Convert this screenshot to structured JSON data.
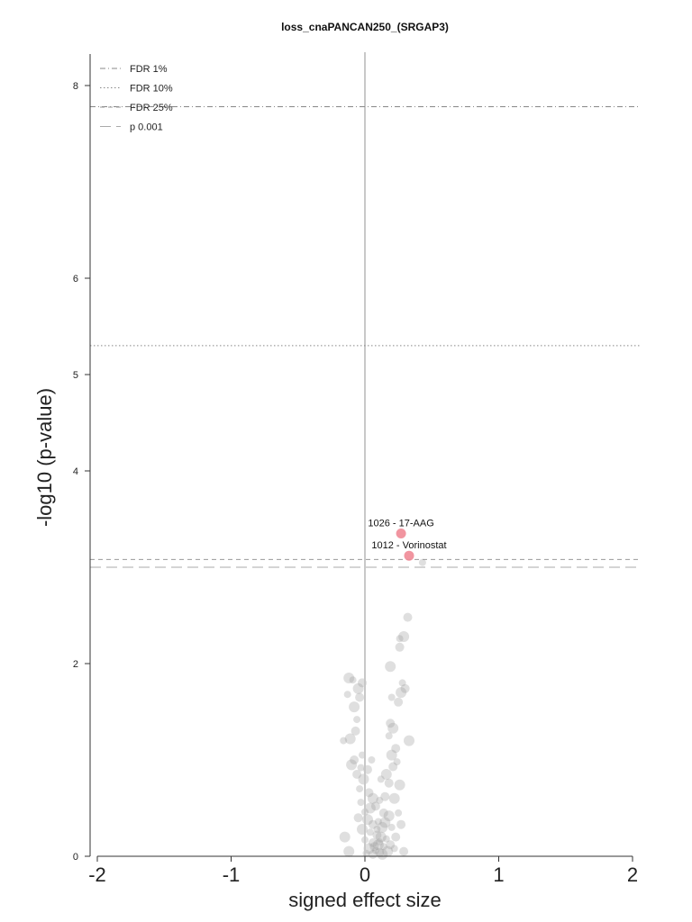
{
  "chart_data": {
    "type": "scatter",
    "title": "loss_cnaPANCAN250_(SRGAP3)",
    "xlabel": "signed effect size",
    "ylabel": "-log10 (p-value)",
    "xlim": [
      -2,
      2
    ],
    "ylim": [
      0,
      8.4
    ],
    "x_ticks": [
      -2,
      -1,
      0,
      1,
      2
    ],
    "x_tick_labels": [
      "-2",
      "-1",
      "0",
      "1",
      "2"
    ],
    "y_ticks": [
      0,
      2,
      4,
      5,
      6,
      8
    ],
    "y_tick_labels": [
      "0",
      "2",
      "4",
      "5",
      "6",
      "8"
    ],
    "grid": false,
    "legend_position": "top-left",
    "zero_line_color": "#c8c8c8",
    "background_point_color": "#9a9a9a",
    "highlight_point_color": "#f08a96",
    "thresholds": [
      {
        "name": "FDR 1%",
        "y": 7.78,
        "style": "dashdot",
        "color": "#888888"
      },
      {
        "name": "FDR 10%",
        "y": 5.3,
        "style": "dotted",
        "color": "#888888"
      },
      {
        "name": "FDR 25%",
        "y": 3.08,
        "style": "dashed-short",
        "color": "#999999"
      },
      {
        "name": "p 0.001",
        "y": 3.0,
        "style": "dashed-long",
        "color": "#aaaaaa"
      }
    ],
    "highlighted": [
      {
        "label": "1026 - 17-AAG",
        "x": 0.27,
        "y": 3.35
      },
      {
        "label": "1012 - Vorinostat",
        "x": 0.33,
        "y": 3.12
      }
    ],
    "points": [
      {
        "x": 0.43,
        "y": 3.05
      },
      {
        "x": 0.32,
        "y": 2.48
      },
      {
        "x": 0.29,
        "y": 2.28
      },
      {
        "x": 0.26,
        "y": 2.26
      },
      {
        "x": 0.26,
        "y": 2.17
      },
      {
        "x": 0.19,
        "y": 1.97
      },
      {
        "x": 0.28,
        "y": 1.8
      },
      {
        "x": 0.3,
        "y": 1.74
      },
      {
        "x": 0.27,
        "y": 1.7
      },
      {
        "x": 0.2,
        "y": 1.65
      },
      {
        "x": 0.25,
        "y": 1.6
      },
      {
        "x": -0.12,
        "y": 1.85
      },
      {
        "x": -0.09,
        "y": 1.83
      },
      {
        "x": -0.02,
        "y": 1.8
      },
      {
        "x": -0.05,
        "y": 1.74
      },
      {
        "x": -0.13,
        "y": 1.68
      },
      {
        "x": -0.04,
        "y": 1.65
      },
      {
        "x": -0.08,
        "y": 1.55
      },
      {
        "x": -0.06,
        "y": 1.42
      },
      {
        "x": -0.07,
        "y": 1.3
      },
      {
        "x": -0.11,
        "y": 1.22
      },
      {
        "x": -0.16,
        "y": 1.2
      },
      {
        "x": 0.19,
        "y": 1.38
      },
      {
        "x": 0.21,
        "y": 1.33
      },
      {
        "x": 0.18,
        "y": 1.25
      },
      {
        "x": 0.23,
        "y": 1.12
      },
      {
        "x": 0.2,
        "y": 1.05
      },
      {
        "x": 0.24,
        "y": 0.98
      },
      {
        "x": 0.21,
        "y": 0.93
      },
      {
        "x": 0.33,
        "y": 1.2
      },
      {
        "x": -0.02,
        "y": 1.05
      },
      {
        "x": -0.08,
        "y": 1.0
      },
      {
        "x": -0.1,
        "y": 0.95
      },
      {
        "x": -0.03,
        "y": 0.92
      },
      {
        "x": -0.06,
        "y": 0.85
      },
      {
        "x": -0.01,
        "y": 0.8
      },
      {
        "x": 0.05,
        "y": 1.0
      },
      {
        "x": 0.02,
        "y": 0.9
      },
      {
        "x": 0.16,
        "y": 0.85
      },
      {
        "x": 0.12,
        "y": 0.8
      },
      {
        "x": 0.18,
        "y": 0.76
      },
      {
        "x": 0.26,
        "y": 0.74
      },
      {
        "x": -0.04,
        "y": 0.7
      },
      {
        "x": 0.03,
        "y": 0.66
      },
      {
        "x": 0.06,
        "y": 0.6
      },
      {
        "x": 0.11,
        "y": 0.58
      },
      {
        "x": 0.15,
        "y": 0.62
      },
      {
        "x": 0.22,
        "y": 0.6
      },
      {
        "x": -0.03,
        "y": 0.56
      },
      {
        "x": 0.08,
        "y": 0.52
      },
      {
        "x": 0.04,
        "y": 0.5
      },
      {
        "x": 0.0,
        "y": 0.46
      },
      {
        "x": 0.14,
        "y": 0.45
      },
      {
        "x": 0.18,
        "y": 0.42
      },
      {
        "x": 0.25,
        "y": 0.45
      },
      {
        "x": -0.05,
        "y": 0.4
      },
      {
        "x": 0.02,
        "y": 0.38
      },
      {
        "x": 0.1,
        "y": 0.36
      },
      {
        "x": 0.06,
        "y": 0.33
      },
      {
        "x": 0.13,
        "y": 0.3
      },
      {
        "x": 0.2,
        "y": 0.3
      },
      {
        "x": 0.27,
        "y": 0.33
      },
      {
        "x": -0.02,
        "y": 0.28
      },
      {
        "x": 0.04,
        "y": 0.25
      },
      {
        "x": 0.09,
        "y": 0.22
      },
      {
        "x": 0.12,
        "y": 0.2
      },
      {
        "x": 0.16,
        "y": 0.18
      },
      {
        "x": 0.23,
        "y": 0.2
      },
      {
        "x": -0.15,
        "y": 0.2
      },
      {
        "x": 0.0,
        "y": 0.17
      },
      {
        "x": 0.06,
        "y": 0.14
      },
      {
        "x": 0.1,
        "y": 0.12
      },
      {
        "x": 0.14,
        "y": 0.1
      },
      {
        "x": 0.19,
        "y": 0.12
      },
      {
        "x": 0.03,
        "y": 0.08
      },
      {
        "x": 0.08,
        "y": 0.06
      },
      {
        "x": 0.11,
        "y": 0.04
      },
      {
        "x": 0.17,
        "y": 0.05
      },
      {
        "x": 0.22,
        "y": 0.08
      },
      {
        "x": 0.29,
        "y": 0.05
      },
      {
        "x": -0.12,
        "y": 0.05
      },
      {
        "x": 0.01,
        "y": 0.03
      },
      {
        "x": 0.06,
        "y": 0.02
      },
      {
        "x": 0.13,
        "y": 0.02
      },
      {
        "x": 0.09,
        "y": 0.28
      },
      {
        "x": 0.07,
        "y": 0.1
      },
      {
        "x": 0.15,
        "y": 0.35
      },
      {
        "x": 0.11,
        "y": 0.15
      }
    ]
  }
}
